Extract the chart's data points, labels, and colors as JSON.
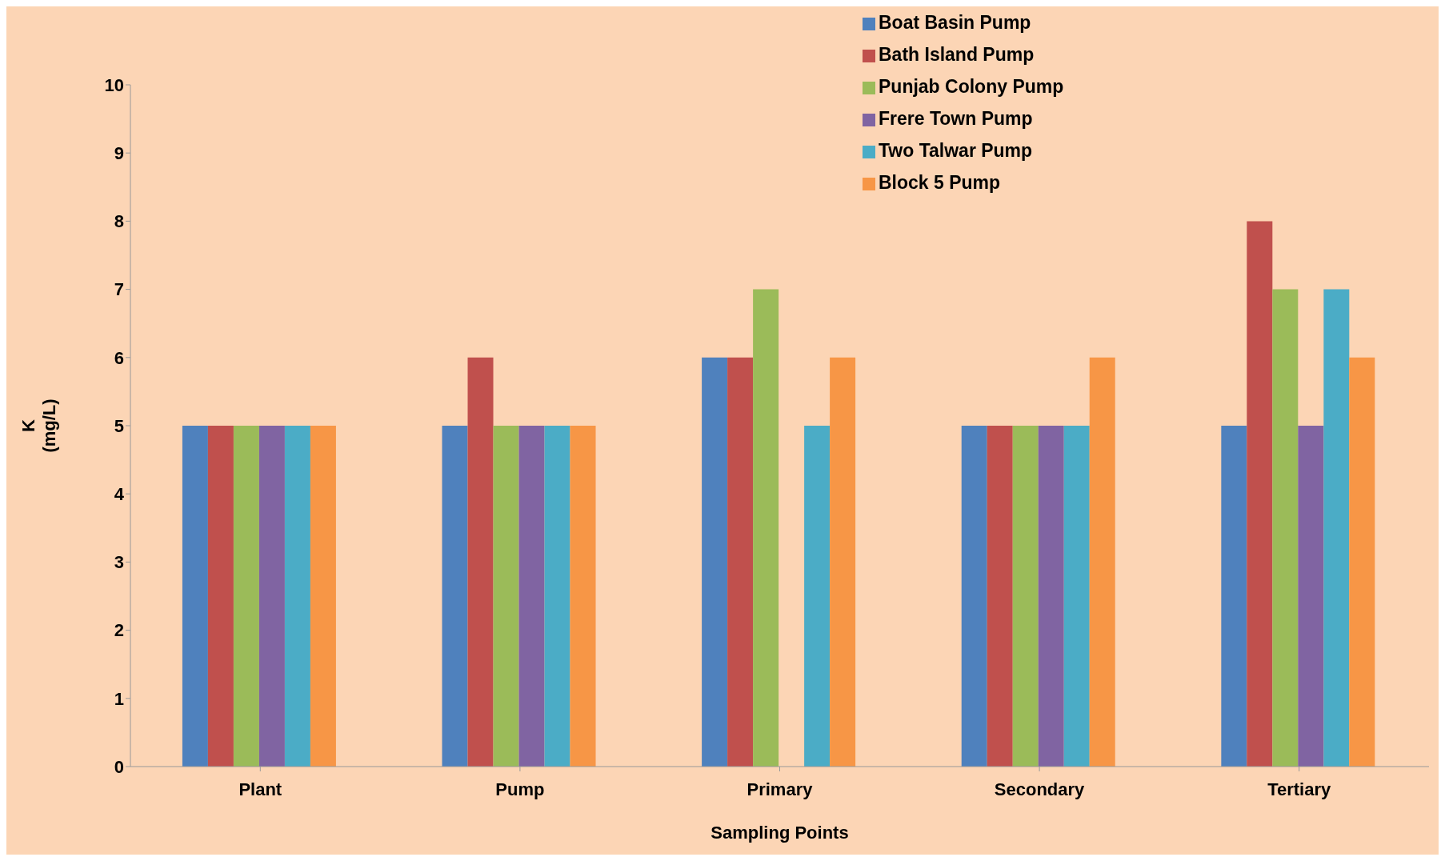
{
  "chart_data": {
    "type": "bar",
    "xlabel": "Sampling Points",
    "ylabel": "K\n(mg/L)",
    "categories": [
      "Plant",
      "Pump",
      "Primary",
      "Secondary",
      "Tertiary"
    ],
    "series": [
      {
        "name": "Boat Basin Pump",
        "color": "#4f81bd",
        "values": [
          5,
          5,
          6,
          5,
          5
        ]
      },
      {
        "name": "Bath Island Pump",
        "color": "#c0504d",
        "values": [
          5,
          6,
          6,
          5,
          8
        ]
      },
      {
        "name": "Punjab Colony Pump",
        "color": "#9bbb59",
        "values": [
          5,
          5,
          7,
          5,
          7
        ]
      },
      {
        "name": "Frere Town Pump",
        "color": "#8064a2",
        "values": [
          5,
          5,
          0,
          5,
          5
        ]
      },
      {
        "name": "Two Talwar Pump",
        "color": "#4bacc6",
        "values": [
          5,
          5,
          5,
          5,
          7
        ]
      },
      {
        "name": "Block 5 Pump",
        "color": "#f79646",
        "values": [
          5,
          5,
          6,
          6,
          6
        ]
      }
    ],
    "ylim": [
      0,
      10
    ],
    "yticks": [
      0,
      1,
      2,
      3,
      4,
      5,
      6,
      7,
      8,
      9,
      10
    ],
    "grid": false,
    "legend": "top right"
  }
}
